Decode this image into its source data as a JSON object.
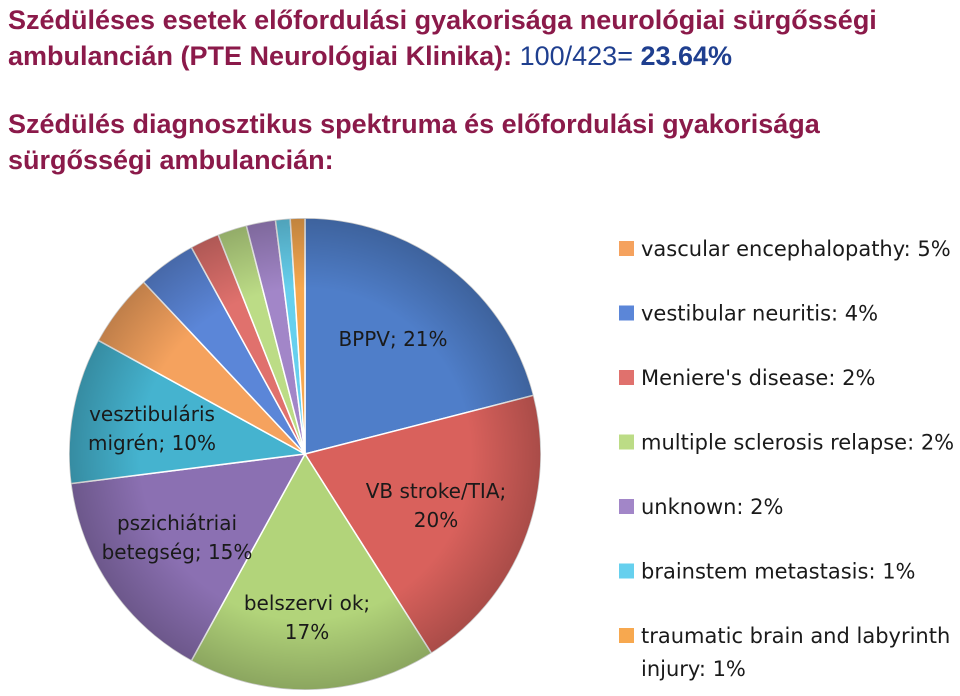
{
  "header": {
    "line1_main": "Szédüléses esetek előfordulási gyakorisága neurológiai sürgősségi ambulancián (PTE Neurológiai Klinika):",
    "line1_ratio": "100/423=",
    "line1_pct": "23.64%",
    "line2": "Szédülés diagnosztikus spektruma és előfordulási gyakorisága sürgősségi ambulancián:"
  },
  "chart_data": {
    "type": "pie",
    "slices": [
      {
        "name": "BPPV",
        "value": 21,
        "color": "#4f7ec9",
        "label": [
          "BPPV; 21%"
        ]
      },
      {
        "name": "VB stroke/TIA",
        "value": 20,
        "color": "#d9615c",
        "label": [
          "VB stroke/TIA;",
          "20%"
        ]
      },
      {
        "name": "belszervi ok",
        "value": 17,
        "color": "#b2d47a",
        "label": [
          "belszervi ok;",
          "17%"
        ]
      },
      {
        "name": "pszichiátriai betegség",
        "value": 15,
        "color": "#8b70b2",
        "label": [
          "pszichiátriai",
          "betegség; 15%"
        ]
      },
      {
        "name": "vesztibuláris migrén",
        "value": 10,
        "color": "#45b3cf",
        "label": [
          "vesztibuláris",
          "migrén; 10%"
        ]
      },
      {
        "name": "vascular encephalopathy",
        "value": 5,
        "color": "#f5a25e",
        "label": null
      },
      {
        "name": "vestibular neuritis",
        "value": 4,
        "color": "#5b86d8",
        "label": null
      },
      {
        "name": "Meniere's disease",
        "value": 2,
        "color": "#e0716d",
        "label": null
      },
      {
        "name": "multiple sclerosis relapse",
        "value": 2,
        "color": "#bcdc86",
        "label": null
      },
      {
        "name": "unknown",
        "value": 2,
        "color": "#a286c8",
        "label": null
      },
      {
        "name": "brainstem metastasis",
        "value": 1,
        "color": "#66d0ee",
        "label": null
      },
      {
        "name": "traumatic brain and labyrinth injury",
        "value": 1,
        "color": "#f7a84f",
        "label": null
      }
    ],
    "legend": {
      "placement": "right",
      "entries": [
        {
          "lines": [
            "vascular encephalopathy: 5%"
          ],
          "color": "#f5a25e"
        },
        {
          "lines": [
            "vestibular neuritis: 4%"
          ],
          "color": "#5b86d8"
        },
        {
          "lines": [
            "Meniere's disease: 2%"
          ],
          "color": "#e0716d"
        },
        {
          "lines": [
            "multiple sclerosis relapse: 2%"
          ],
          "color": "#bcdc86"
        },
        {
          "lines": [
            "unknown: 2%"
          ],
          "color": "#a286c8"
        },
        {
          "lines": [
            "brainstem metastasis: 1%"
          ],
          "color": "#66d0ee"
        },
        {
          "lines": [
            "traumatic brain and labyrinth",
            "injury: 1%"
          ],
          "color": "#f7a84f"
        }
      ]
    }
  }
}
